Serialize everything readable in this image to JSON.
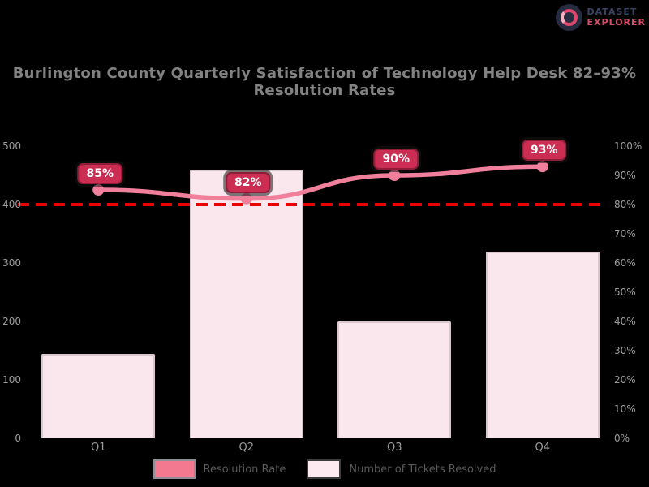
{
  "logo": {
    "line1": "DATASET",
    "line2": "EXPLORER",
    "icon": "data-explorer-logo-icon"
  },
  "title": "Burlington County Quarterly Satisfaction of Technology Help Desk 82–93% Resolution Rates",
  "chart_data": {
    "type": "bar",
    "subtype": "combo-bar-line-dual-axis",
    "categories": [
      "Q1",
      "Q2",
      "Q3",
      "Q4"
    ],
    "series": [
      {
        "name": "Number of Tickets Resolved",
        "type": "bar",
        "axis": "left",
        "values": [
          145,
          460,
          200,
          320
        ],
        "fill": "#fae7ee",
        "border": "#d8c7cd"
      },
      {
        "name": "Resolution Rate",
        "type": "line",
        "axis": "right",
        "values": [
          85,
          82,
          90,
          93
        ],
        "point_labels": [
          "85%",
          "82%",
          "90%",
          "93%"
        ],
        "color": "#ef7f9a"
      }
    ],
    "target_line": {
      "axis": "right",
      "value": 80,
      "color": "#e90000",
      "style": "dashed"
    },
    "left_axis": {
      "min": 0,
      "max": 500,
      "tick_labels": [
        "500",
        "400",
        "300",
        "200",
        "100",
        "0"
      ]
    },
    "right_axis": {
      "min": 0,
      "max": 100,
      "tick_labels": [
        "100%",
        "90%",
        "80%",
        "70%",
        "60%",
        "50%",
        "40%",
        "30%",
        "20%",
        "10%",
        "0%"
      ]
    },
    "grid": false,
    "legend_position": "bottom",
    "badge_color": "#cb2e52",
    "badge_text_color": "#ffffff"
  },
  "legend": [
    {
      "label": "Resolution Rate",
      "swatch_color": "#f2798f"
    },
    {
      "label": "Number of Tickets Resolved",
      "swatch_color": "#fceaf0"
    }
  ]
}
